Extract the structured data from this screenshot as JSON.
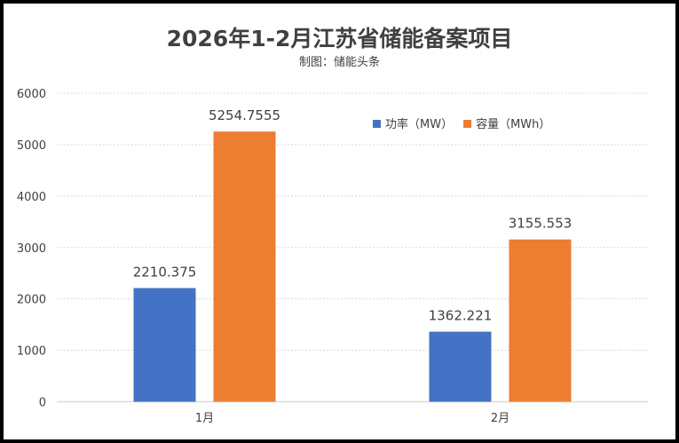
{
  "chart_data": {
    "type": "bar",
    "title": "2026年1-2月江苏省储能备案项目",
    "subtitle": "制图：储能头条",
    "categories": [
      "1月",
      "2月"
    ],
    "series": [
      {
        "name": "功率（MW）",
        "color": "#4472C4",
        "values": [
          2210.375,
          1362.221
        ],
        "labels": [
          "2210.375",
          "1362.221"
        ]
      },
      {
        "name": "容量（MWh）",
        "color": "#ED7D31",
        "values": [
          5254.7555,
          3155.553
        ],
        "labels": [
          "5254.7555",
          "3155.553"
        ]
      }
    ],
    "ylim": [
      0,
      6000
    ],
    "yticks": [
      0,
      1000,
      2000,
      3000,
      4000,
      5000,
      6000
    ],
    "grid": "horizontal dotted",
    "legend": "top-right"
  }
}
